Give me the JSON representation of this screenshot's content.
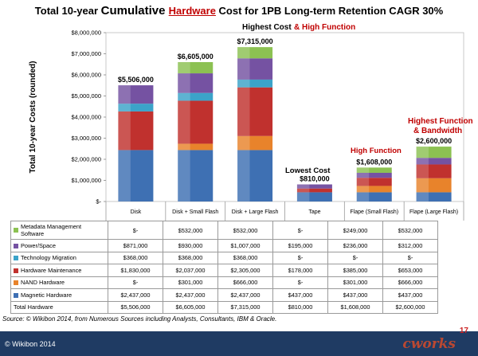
{
  "title": {
    "before": "Total 10-year ",
    "mid": "Cumulative ",
    "highlight": "Hardware",
    "after": " Cost for 1PB Long-term Retention CAGR 30%"
  },
  "chart_data": {
    "type": "bar",
    "stacked": true,
    "title": "Total 10-year Cumulative Hardware Cost for 1PB Long-term Retention CAGR 30%",
    "ylabel": "Total 10-year Costs (rounded)",
    "xlabel": "",
    "ylim": [
      0,
      8000000
    ],
    "yticks": [
      "$-",
      "$1,000,000",
      "$2,000,000",
      "$3,000,000",
      "$4,000,000",
      "$5,000,000",
      "$6,000,000",
      "$7,000,000",
      "$8,000,000"
    ],
    "ytick_values": [
      0,
      1000000,
      2000000,
      3000000,
      4000000,
      5000000,
      6000000,
      7000000,
      8000000
    ],
    "categories": [
      "Disk",
      "Disk + Small Flash",
      "Disk + Large Flash",
      "Tape",
      "Flape (Small Flash)",
      "Flape (Large Flash)"
    ],
    "series": [
      {
        "name": "Magnetic Hardware",
        "color": "#3e70b3",
        "values": [
          2437000,
          2437000,
          2437000,
          437000,
          437000,
          437000
        ]
      },
      {
        "name": "NAND Hardware",
        "color": "#e8832b",
        "values": [
          0,
          301000,
          666000,
          0,
          301000,
          666000
        ]
      },
      {
        "name": "Hardware Maintenance",
        "color": "#c0312e",
        "values": [
          1830000,
          2037000,
          2305000,
          178000,
          385000,
          653000
        ]
      },
      {
        "name": "Technology Migration",
        "color": "#3ba3c9",
        "values": [
          368000,
          368000,
          368000,
          0,
          0,
          0
        ]
      },
      {
        "name": "Power/Space",
        "color": "#7552a2",
        "values": [
          871000,
          930000,
          1007000,
          195000,
          236000,
          312000
        ]
      },
      {
        "name": "Metadata Management Software",
        "color": "#8cc152",
        "values": [
          0,
          532000,
          532000,
          0,
          249000,
          532000
        ]
      }
    ],
    "totals": [
      5506000,
      6605000,
      7315000,
      810000,
      1608000,
      2600000
    ],
    "total_labels": [
      "$5,506,000",
      "$6,605,000",
      "$7,315,000",
      "$810,000",
      "$1,608,000",
      "$2,600,000"
    ],
    "annotations": [
      {
        "text": "Highest Cost",
        "color": "#000000",
        "category": "Disk + Large Flash"
      },
      {
        "text": "& High Function",
        "color": "#c00000",
        "category": "Disk + Large Flash"
      },
      {
        "text": "Lowest Cost",
        "color": "#000000",
        "category": "Tape"
      },
      {
        "text": "High Function",
        "color": "#c00000",
        "category": "Flape (Small Flash)"
      },
      {
        "text": "Highest Function",
        "color": "#c00000",
        "category": "Flape (Large Flash)"
      },
      {
        "text": "& Bandwidth",
        "color": "#c00000",
        "category": "Flape (Large Flash)"
      }
    ]
  },
  "table": {
    "headers": [
      "Disk",
      "Disk + Small Flash",
      "Disk + Large Flash",
      "Tape",
      "Flape (Small Flash)",
      "Flape (Large Flash)"
    ],
    "rows": [
      {
        "label": "Metadata Management Software",
        "color": "#8cc152",
        "values": [
          "$-",
          "$532,000",
          "$532,000",
          "$-",
          "$249,000",
          "$532,000"
        ]
      },
      {
        "label": "Power/Space",
        "color": "#7552a2",
        "values": [
          "$871,000",
          "$930,000",
          "$1,007,000",
          "$195,000",
          "$236,000",
          "$312,000"
        ]
      },
      {
        "label": "Technology Migration",
        "color": "#3ba3c9",
        "values": [
          "$368,000",
          "$368,000",
          "$368,000",
          "$-",
          "$-",
          "$-"
        ]
      },
      {
        "label": "Hardware Maintenance",
        "color": "#c0312e",
        "values": [
          "$1,830,000",
          "$2,037,000",
          "$2,305,000",
          "$178,000",
          "$385,000",
          "$653,000"
        ]
      },
      {
        "label": "NAND Hardware",
        "color": "#e8832b",
        "values": [
          "$-",
          "$301,000",
          "$666,000",
          "$-",
          "$301,000",
          "$666,000"
        ]
      },
      {
        "label": "Magnetic Hardware",
        "color": "#3e70b3",
        "values": [
          "$2,437,000",
          "$2,437,000",
          "$2,437,000",
          "$437,000",
          "$437,000",
          "$437,000"
        ]
      },
      {
        "label": "Total Hardware",
        "color": "",
        "values": [
          "$5,506,000",
          "$6,605,000",
          "$7,315,000",
          "$810,000",
          "$1,608,000",
          "$2,600,000"
        ]
      }
    ]
  },
  "source": "Source: © Wikibon 2014, from Numerous Sources including Analysts, Consultants, IBM & Oracle.",
  "footer": {
    "copyright": "© Wikibon 2014",
    "page_number": "17",
    "logo": "cworks"
  }
}
